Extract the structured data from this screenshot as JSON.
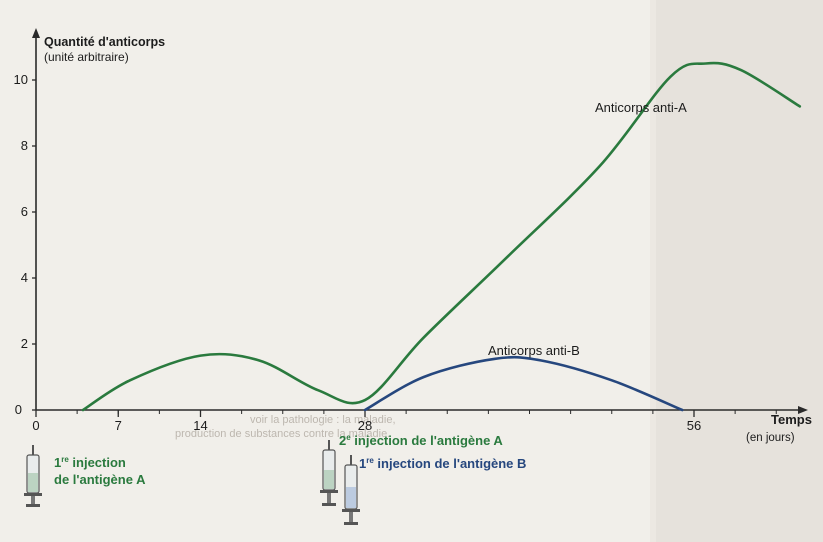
{
  "chart_data": {
    "type": "line",
    "title": "",
    "ylabel": "Quantité d'anticorps",
    "ylabel_sub": "(unité arbitraire)",
    "xlabel": "Temps",
    "xlabel_sub": "(en jours)",
    "xlim": [
      0,
      65
    ],
    "ylim": [
      0,
      11
    ],
    "x_ticks": [
      0,
      7,
      14,
      28,
      56
    ],
    "y_ticks": [
      0,
      2,
      4,
      6,
      8,
      10
    ],
    "grid": false,
    "series": [
      {
        "name": "Anticorps anti-A",
        "color": "#2a7a3e",
        "points": [
          [
            4,
            0
          ],
          [
            8,
            0.9
          ],
          [
            14,
            1.65
          ],
          [
            19,
            1.5
          ],
          [
            24,
            0.6
          ],
          [
            28,
            0.3
          ],
          [
            33,
            2.2
          ],
          [
            40,
            4.6
          ],
          [
            48,
            7.4
          ],
          [
            54,
            10.1
          ],
          [
            57,
            10.5
          ],
          [
            60,
            10.3
          ],
          [
            65,
            9.2
          ]
        ]
      },
      {
        "name": "Anticorps anti-B",
        "color": "#26477e",
        "points": [
          [
            28,
            0
          ],
          [
            33,
            1.0
          ],
          [
            39,
            1.55
          ],
          [
            43,
            1.5
          ],
          [
            49,
            0.9
          ],
          [
            55,
            0
          ]
        ]
      }
    ],
    "annotations": [
      {
        "day": 0,
        "line1_num": "1",
        "line1_sup": "re",
        "line1_text": " injection",
        "line2": "de l'antigène A",
        "color": "#2a7a3e"
      },
      {
        "day": 28,
        "num": "2",
        "sup": "e",
        "text": " injection de l'antigène A",
        "color": "#2a7a3e"
      },
      {
        "day": 28,
        "num": "1",
        "sup": "re",
        "text": " injection de l'antigène B",
        "color": "#26477e"
      }
    ],
    "background_text": [
      "voir la pathologie : la maladie,",
      "production de substances contre la maladie."
    ]
  },
  "colors": {
    "background": "#f1efea",
    "axis": "#2a2a2a",
    "anti_a": "#2a7a3e",
    "anti_b": "#26477e"
  }
}
